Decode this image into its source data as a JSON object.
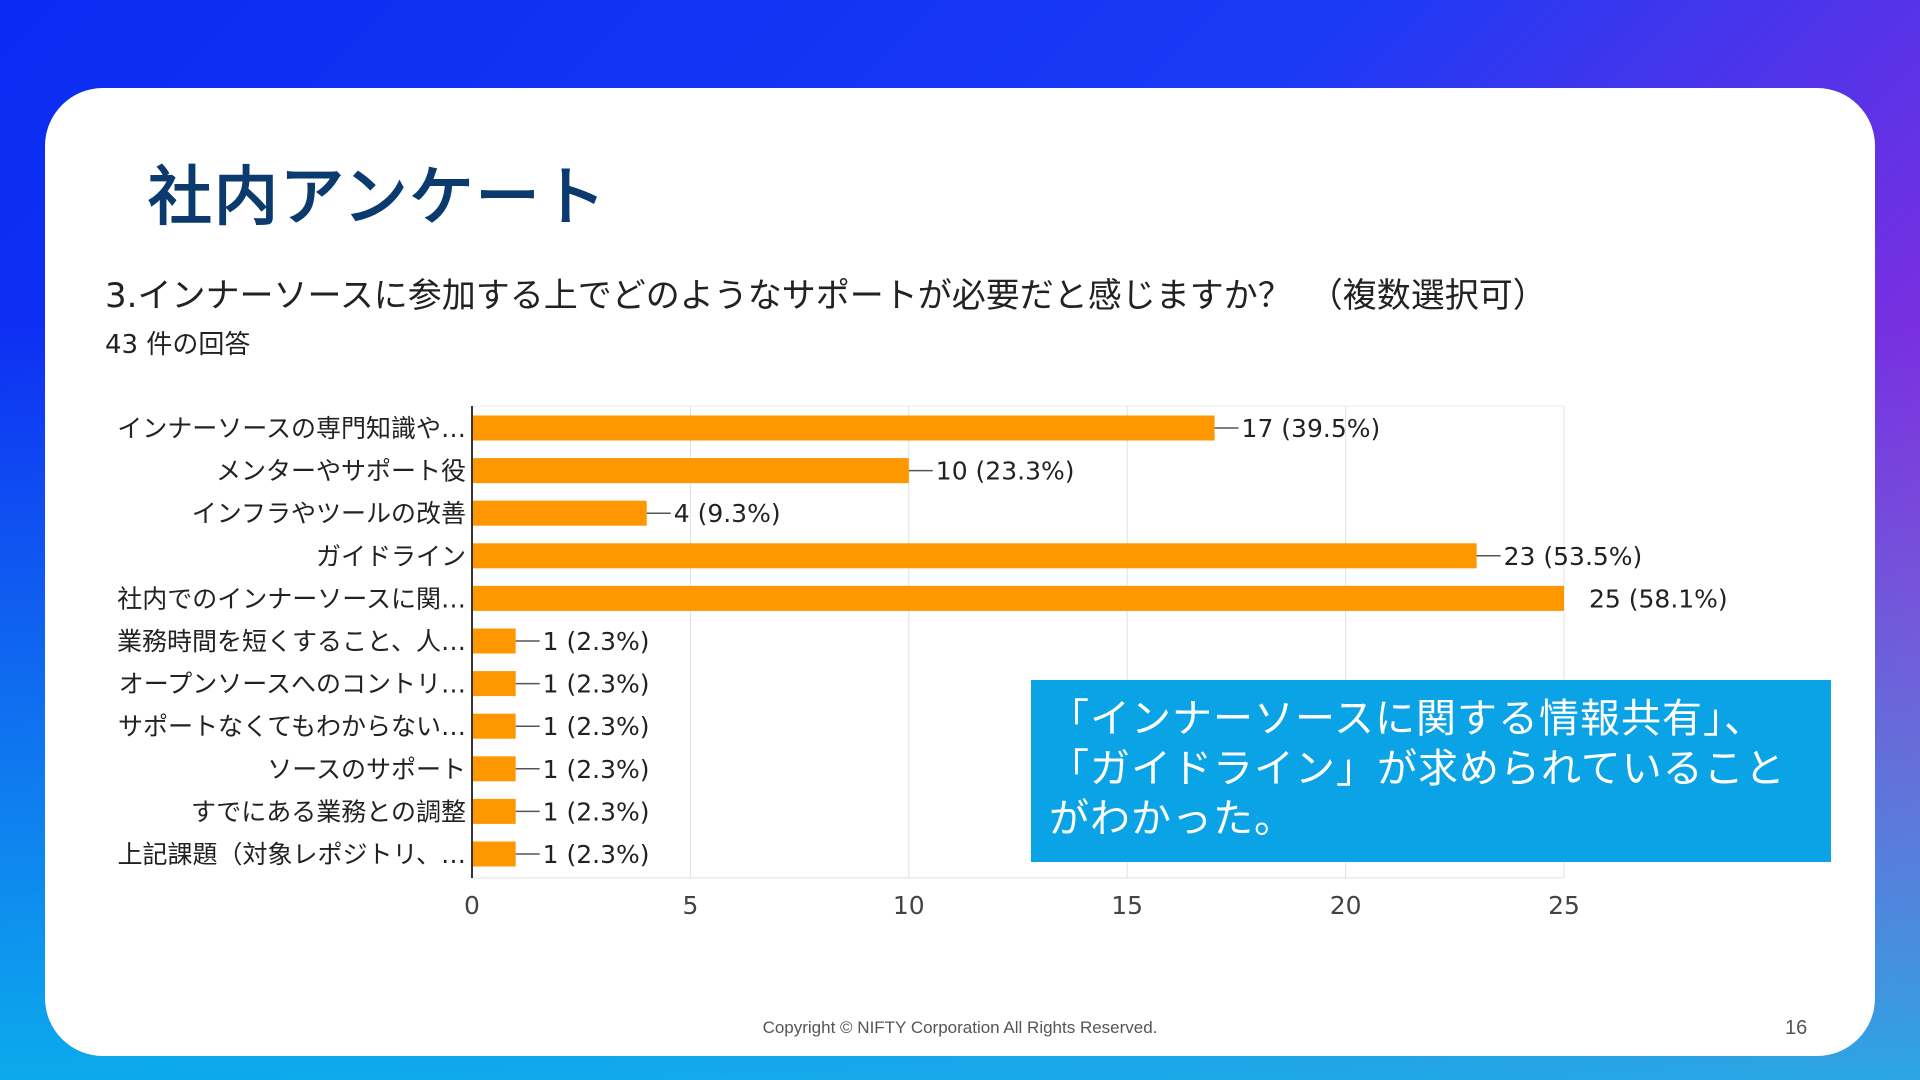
{
  "slide": {
    "title": "社内アンケート",
    "copyright": "Copyright © NIFTY Corporation All Rights Reserved.",
    "page_number": "16"
  },
  "callout": {
    "lines": [
      "「インナーソースに関する情報共有」、",
      "「ガイドライン」が求められていること",
      "がわかった。"
    ]
  },
  "colors": {
    "bar": "#ff9800",
    "callout_bg": "#0aa3e6",
    "title": "#0b3a6e"
  },
  "chart_data": {
    "type": "bar",
    "orientation": "horizontal",
    "title": "3.インナーソースに参加する上でどのようなサポートが必要だと感じますか？　（複数選択可）",
    "subtitle": "43 件の回答",
    "categories": [
      "インナーソースの専門知識や…",
      "メンターやサポート役",
      "インフラやツールの改善",
      "ガイドライン",
      "社内でのインナーソースに関…",
      "業務時間を短くすること、人…",
      "オープンソースへのコントリ…",
      "サポートなくてもわからない…",
      "ソースのサポート",
      "すでにある業務との調整",
      "上記課題（対象レポジトリ、…"
    ],
    "values": [
      17,
      10,
      4,
      23,
      25,
      1,
      1,
      1,
      1,
      1,
      1
    ],
    "data_labels": [
      "17 (39.5%)",
      "10 (23.3%)",
      "4 (9.3%)",
      "23 (53.5%)",
      "25 (58.1%)",
      "1 (2.3%)",
      "1 (2.3%)",
      "1 (2.3%)",
      "1 (2.3%)",
      "1 (2.3%)",
      "1 (2.3%)"
    ],
    "xticks": [
      0,
      5,
      10,
      15,
      20,
      25
    ],
    "xlim": [
      0,
      25
    ],
    "grid": true
  }
}
